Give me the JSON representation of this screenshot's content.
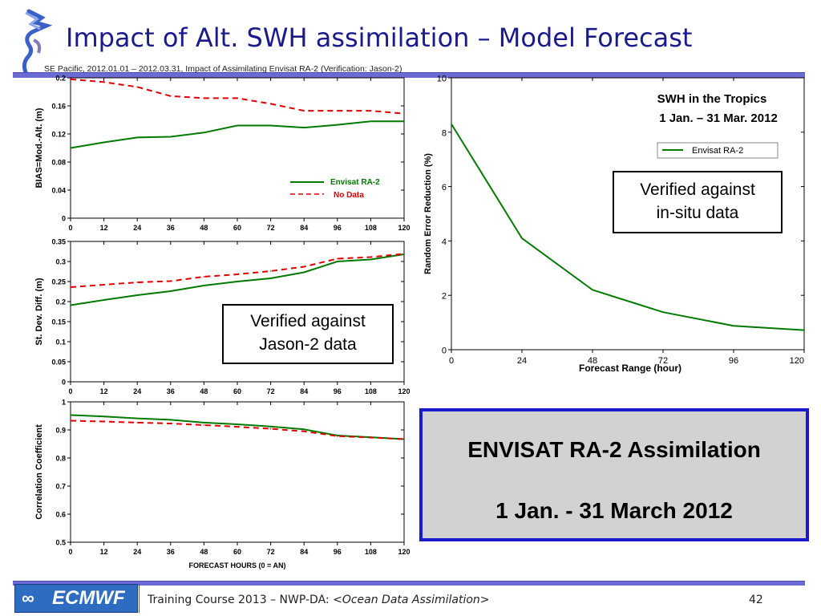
{
  "slide": {
    "title": "Impact of Alt. SWH assimilation – Model Forecast",
    "caption": "SE Pacific,  2012.01.01 – 2012.03.31,  Impact of Assimilating Envisat RA-2 (Verification: Jason-2)",
    "callout_jason_1": "Verified against",
    "callout_jason_2": "Jason-2 data",
    "callout_insitu_1": "Verified against",
    "callout_insitu_2": "in-situ data",
    "summary_line1": "ENVISAT RA-2 Assimilation",
    "summary_line2": "1 Jan. - 31 March 2012",
    "footer_prefix": "Training Course 2013 – NWP-DA: ",
    "footer_italic": "<Ocean Data Assimilation>",
    "page_number": "42",
    "logo_text": "ECMWF",
    "colors": {
      "accent": "#1a1a8c",
      "rule": "#6b6bd6",
      "envisat": "#007a00",
      "nodata": "#e00000",
      "summary_border": "#1a1ac8",
      "summary_bg": "#d2d2d2"
    }
  },
  "chart_data": [
    {
      "type": "line",
      "id": "bias",
      "ylabel": "BIAS=Mod.-Alt.   (m)",
      "x": [
        0,
        12,
        24,
        36,
        48,
        60,
        72,
        84,
        96,
        108,
        120
      ],
      "xticks": [
        "0",
        "12",
        "24",
        "36",
        "48",
        "60",
        "72",
        "84",
        "96",
        "108",
        "120"
      ],
      "ylim": [
        0,
        0.2
      ],
      "yticks": [
        "0",
        "0.04",
        "0.08",
        "0.12",
        "0.16",
        "0.2"
      ],
      "legend": {
        "placement": "lower-right"
      },
      "series": [
        {
          "name": "Envisat RA-2",
          "style": "solid",
          "values": [
            0.1,
            0.108,
            0.115,
            0.116,
            0.122,
            0.132,
            0.132,
            0.129,
            0.133,
            0.138,
            0.138
          ]
        },
        {
          "name": "No Data",
          "style": "dashed",
          "values": [
            0.198,
            0.194,
            0.187,
            0.174,
            0.171,
            0.171,
            0.163,
            0.153,
            0.153,
            0.153,
            0.149
          ]
        }
      ]
    },
    {
      "type": "line",
      "id": "stdev",
      "ylabel": "St. Dev. Diff.  (m)",
      "x": [
        0,
        12,
        24,
        36,
        48,
        60,
        72,
        84,
        96,
        108,
        120
      ],
      "xticks": [
        "0",
        "12",
        "24",
        "36",
        "48",
        "60",
        "72",
        "84",
        "96",
        "108",
        "120"
      ],
      "ylim": [
        0,
        0.35
      ],
      "yticks": [
        "0",
        "0.05",
        "0.1",
        "0.15",
        "0.2",
        "0.25",
        "0.3",
        "0.35"
      ],
      "series": [
        {
          "name": "Envisat RA-2",
          "style": "solid",
          "values": [
            0.191,
            0.204,
            0.216,
            0.226,
            0.24,
            0.25,
            0.258,
            0.273,
            0.3,
            0.305,
            0.318
          ]
        },
        {
          "name": "No Data",
          "style": "dashed",
          "values": [
            0.236,
            0.242,
            0.248,
            0.251,
            0.262,
            0.268,
            0.276,
            0.287,
            0.307,
            0.311,
            0.319
          ]
        }
      ]
    },
    {
      "type": "line",
      "id": "corr",
      "ylabel": "Correlation  Coefficient",
      "xlabel": "FORECAST  HOURS     (0 = AN)",
      "x": [
        0,
        12,
        24,
        36,
        48,
        60,
        72,
        84,
        96,
        108,
        120
      ],
      "xticks": [
        "0",
        "12",
        "24",
        "36",
        "48",
        "60",
        "72",
        "84",
        "96",
        "108",
        "120"
      ],
      "ylim": [
        0.5,
        1
      ],
      "yticks": [
        "0.5",
        "0.6",
        "0.7",
        "0.8",
        "0.9",
        "1"
      ],
      "series": [
        {
          "name": "Envisat RA-2",
          "style": "solid",
          "values": [
            0.953,
            0.948,
            0.941,
            0.936,
            0.926,
            0.92,
            0.912,
            0.902,
            0.88,
            0.874,
            0.867
          ]
        },
        {
          "name": "No Data",
          "style": "dashed",
          "values": [
            0.933,
            0.93,
            0.926,
            0.923,
            0.917,
            0.911,
            0.904,
            0.895,
            0.878,
            0.873,
            0.867
          ]
        }
      ]
    },
    {
      "type": "line",
      "id": "swh",
      "title": "SWH in the Tropics",
      "subtitle": "1 Jan. – 31 Mar. 2012",
      "ylabel": "Random   Error   Reduction        (%)",
      "xlabel": "Forecast   Range       (hour)",
      "x": [
        0,
        24,
        48,
        72,
        96,
        120
      ],
      "xticks": [
        "0",
        "24",
        "48",
        "72",
        "96",
        "120"
      ],
      "xlim": [
        0,
        120
      ],
      "ylim": [
        0,
        10
      ],
      "yticks": [
        "0",
        "2",
        "4",
        "6",
        "8",
        "10"
      ],
      "legend": {
        "placement": "top-right"
      },
      "series": [
        {
          "name": "Envisat RA-2",
          "style": "solid",
          "values": [
            8.3,
            4.1,
            2.2,
            1.38,
            0.88,
            0.72
          ]
        }
      ]
    }
  ]
}
